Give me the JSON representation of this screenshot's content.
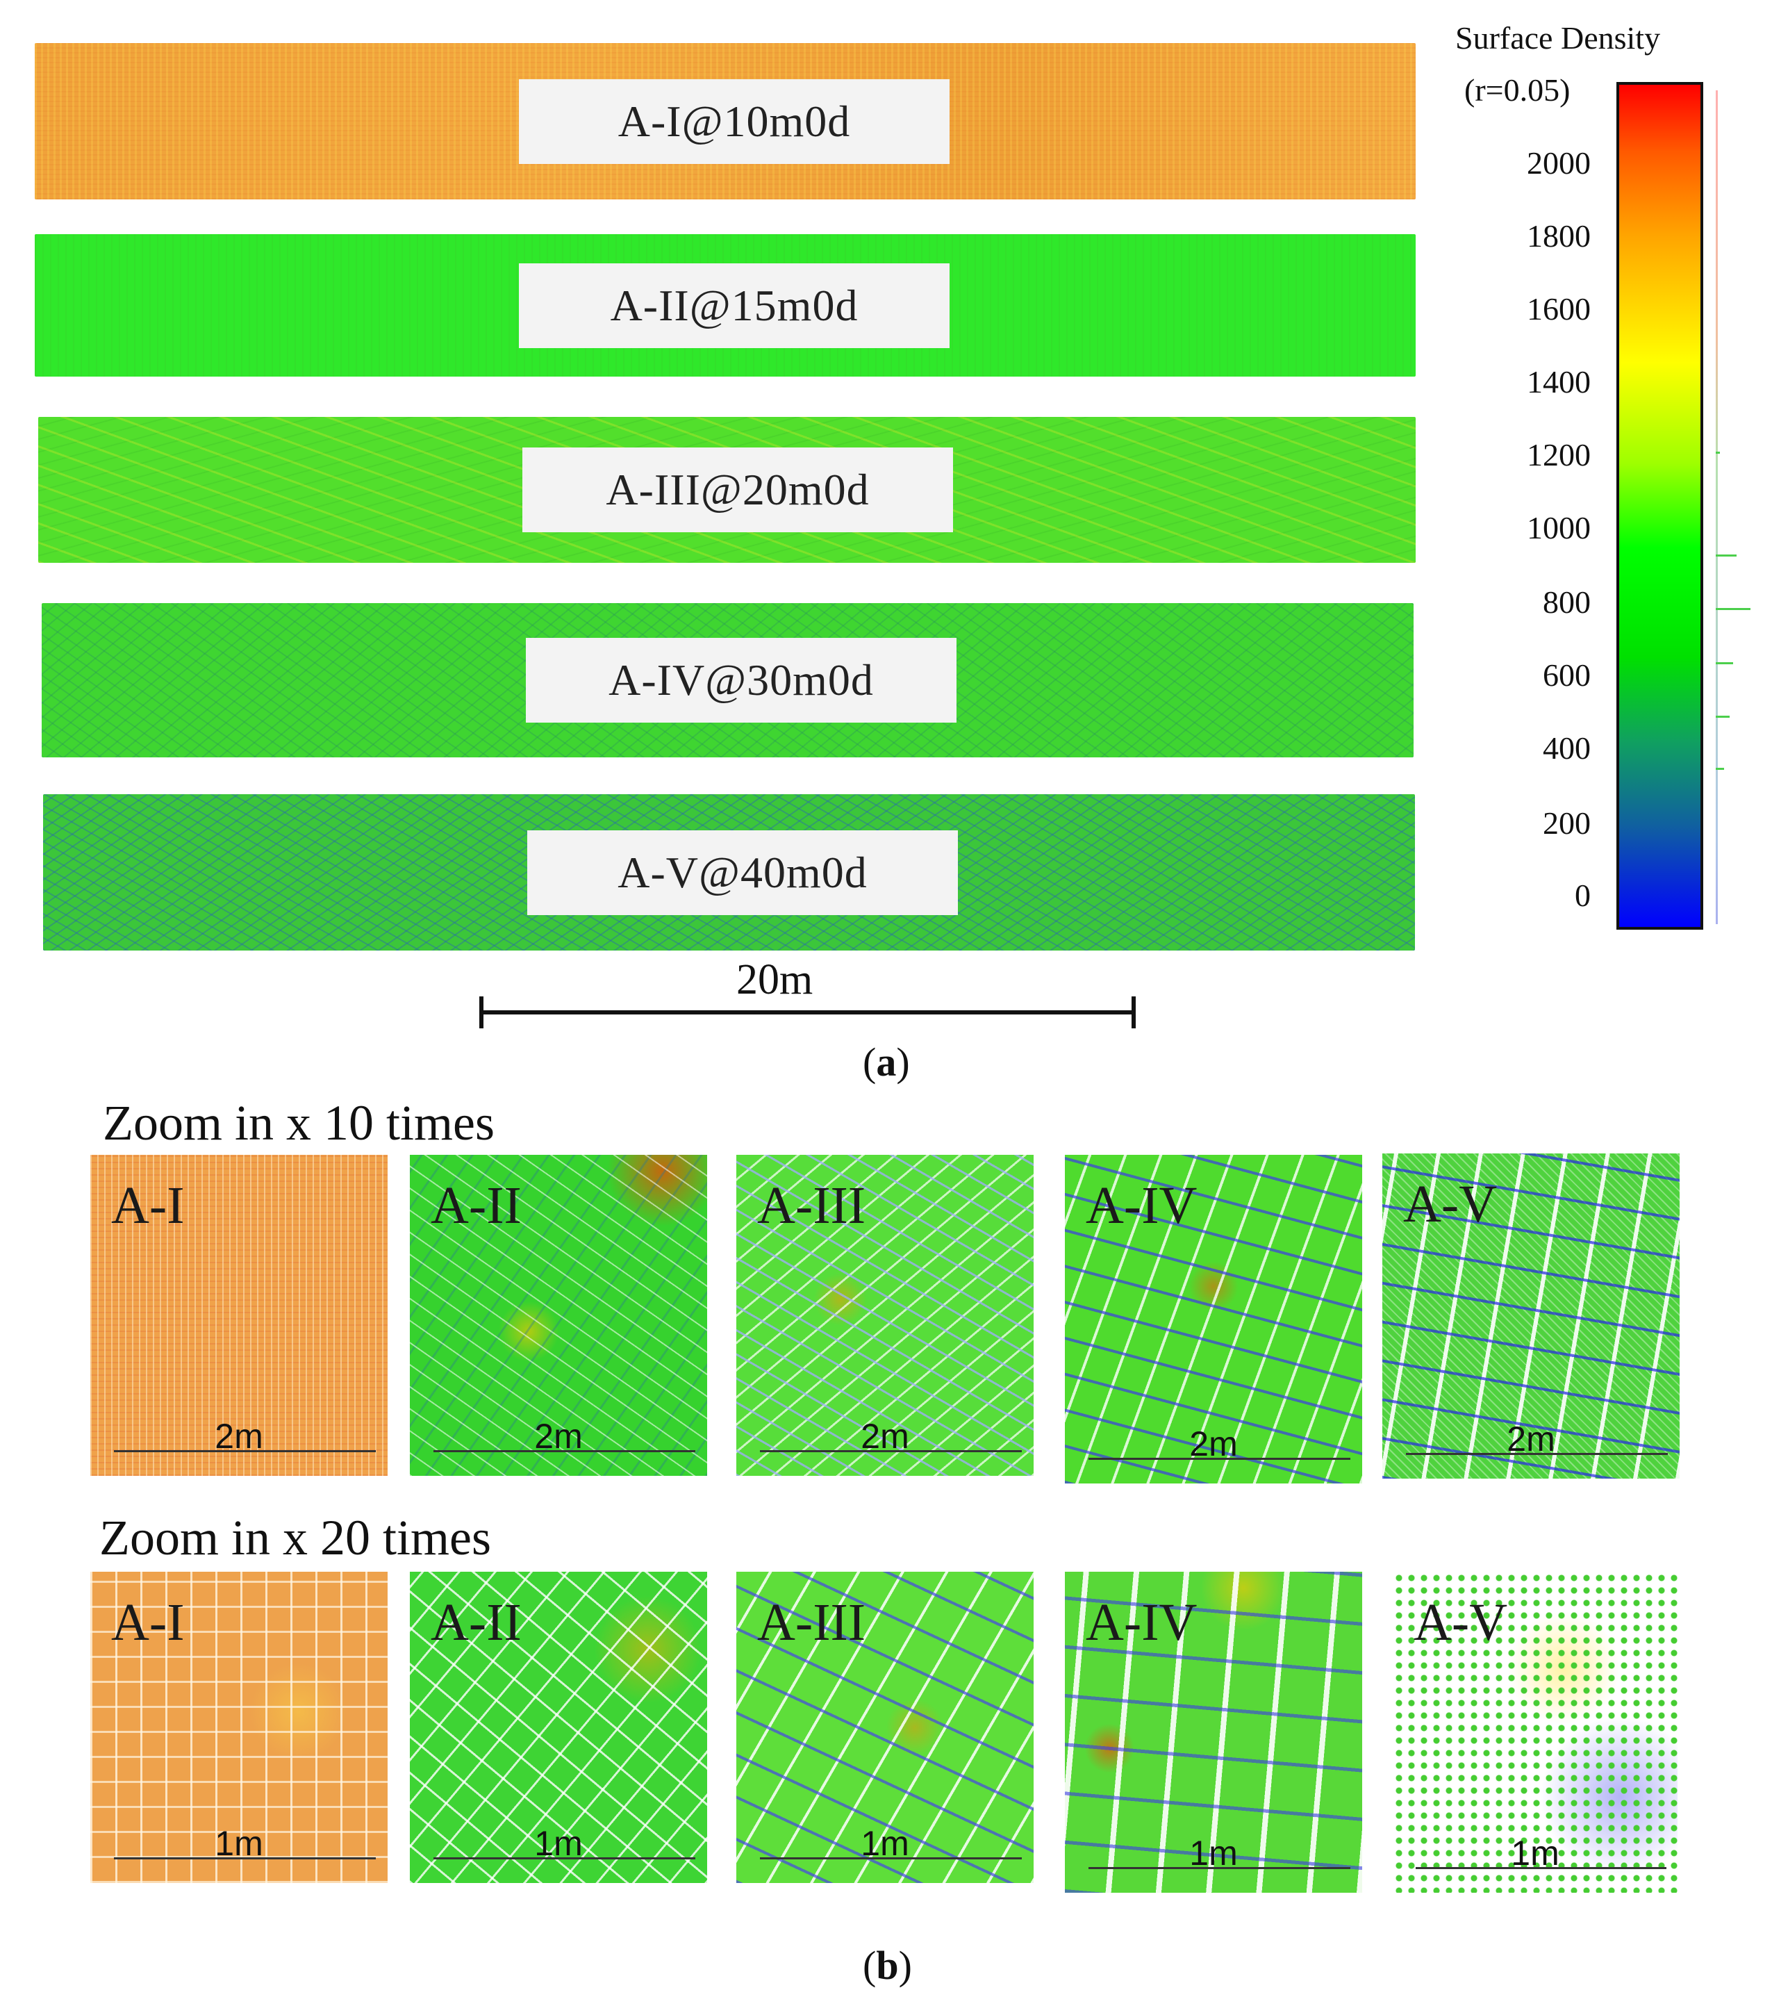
{
  "panel_a": {
    "strips": [
      {
        "label": "A-I@10m0d"
      },
      {
        "label": "A-II@15m0d"
      },
      {
        "label": "A-III@20m0d"
      },
      {
        "label": "A-IV@30m0d"
      },
      {
        "label": "A-V@40m0d"
      }
    ],
    "scale_bar_label": "20m",
    "caption_letter": "a"
  },
  "colorbar": {
    "title": "Surface Density",
    "subtitle": "(r=0.05)",
    "ticks": [
      "2000",
      "1800",
      "1600",
      "1400",
      "1200",
      "1000",
      "800",
      "600",
      "400",
      "200",
      "0"
    ]
  },
  "panel_b": {
    "rows": [
      {
        "title": "Zoom in x 10 times",
        "tiles": [
          {
            "label": "A-I",
            "scale": "2m"
          },
          {
            "label": "A-II",
            "scale": "2m"
          },
          {
            "label": "A-III",
            "scale": "2m"
          },
          {
            "label": "A-IV",
            "scale": "2m"
          },
          {
            "label": "A-V",
            "scale": "2m"
          }
        ]
      },
      {
        "title": "Zoom in x 20 times",
        "tiles": [
          {
            "label": "A-I",
            "scale": "1m"
          },
          {
            "label": "A-II",
            "scale": "1m"
          },
          {
            "label": "A-III",
            "scale": "1m"
          },
          {
            "label": "A-IV",
            "scale": "1m"
          },
          {
            "label": "A-V",
            "scale": "1m"
          }
        ]
      }
    ],
    "caption_letter": "b"
  }
}
